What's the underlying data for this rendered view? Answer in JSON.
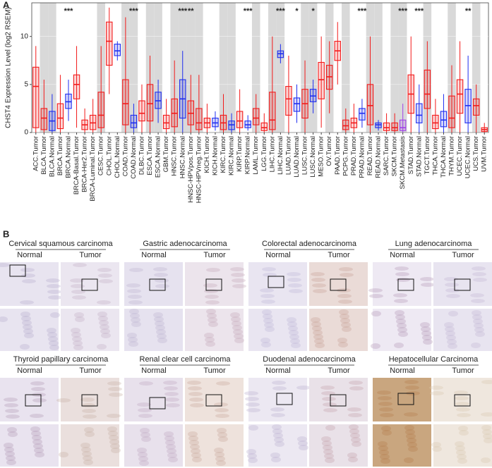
{
  "chart_data": {
    "type": "box",
    "panel_label": "A",
    "y_label": "CHST4 Expression Level (log2 RSEM)",
    "categories": [
      "ACC.Tumor",
      "BLCA.Tumor",
      "BLCA.Normal",
      "BRCA.Tumor",
      "BRCA.Normal",
      "BRCA-Basal.Tumor",
      "BRCA-Her2.Tumor",
      "BRCA-Luminal.Tumor",
      "CESC.Tumor",
      "CHOL.Tumor",
      "CHOL.Normal",
      "COAD.Tumor",
      "COAD.Normal",
      "DLBC.Tumor",
      "ESCA.Tumor",
      "ESCA.Normal",
      "GBM.Tumor",
      "HNSC.Tumor",
      "HNSC.Normal",
      "HNSC-HPVpos.Tumor",
      "HNSC-HPVneg.Tumor",
      "KICH.Tumor",
      "KICH.Normal",
      "KIRC.Tumor",
      "KIRC.Normal",
      "KIRP.Tumor",
      "KIRP.Normal",
      "LAML.Tumor",
      "LGG.Tumor",
      "LIHC.Tumor",
      "LIHC.Normal",
      "LUAD.Tumor",
      "LUAD.Normal",
      "LUSC.Tumor",
      "LUSC.Normal",
      "MESO.Tumor",
      "OV.Tumor",
      "PAAD.Tumor",
      "PCPG.Tumor",
      "PRAD.Tumor",
      "PRAD.Normal",
      "READ.Tumor",
      "READ.Normal",
      "SARC.Tumor",
      "SKCM.Tumor",
      "SKCM.Metastasis",
      "STAD.Tumor",
      "STAD.Normal",
      "TGCT.Tumor",
      "THCA.Tumor",
      "THCA.Normal",
      "THYM.Tumor",
      "UCEC.Tumor",
      "UCEC.Normal",
      "UCS.Tumor",
      "UVM.Tumor"
    ],
    "whisker_low": [
      0,
      0,
      0,
      0,
      1.2,
      0.5,
      0,
      0,
      0,
      4,
      7.5,
      0,
      0,
      0,
      0,
      1,
      0,
      0,
      0,
      0,
      0,
      0,
      0.2,
      0,
      0,
      0,
      0.2,
      0,
      0,
      0,
      7.2,
      0,
      1,
      0,
      2,
      0.5,
      2,
      5,
      0,
      0,
      0.5,
      0,
      0.2,
      0,
      0,
      0,
      0,
      0,
      0,
      0,
      0,
      0,
      0,
      0,
      0,
      0
    ],
    "q1": [
      0.5,
      0.3,
      0.2,
      0.4,
      2.5,
      3.5,
      0.3,
      0.3,
      0.5,
      7,
      8,
      0.8,
      0.5,
      1.2,
      1.2,
      2.5,
      0.4,
      0.6,
      1.5,
      0.8,
      0.3,
      0.5,
      0.6,
      0.3,
      0.3,
      0.5,
      0.5,
      0.8,
      0.2,
      0.3,
      7.8,
      1.8,
      2.2,
      1.5,
      3.2,
      3.5,
      4.5,
      7.5,
      0.3,
      0.5,
      1.3,
      0.8,
      0.5,
      0.2,
      0.2,
      0.2,
      2,
      1,
      2.5,
      0.4,
      0.6,
      0.5,
      2,
      1,
      1.8,
      0.1
    ],
    "median": [
      4.8,
      1.5,
      1.2,
      1.5,
      3.2,
      5,
      0.8,
      1,
      1.8,
      9.5,
      8.5,
      3,
      1,
      2,
      3,
      3.3,
      1,
      2,
      3.5,
      2,
      1,
      1,
      1,
      1,
      0.8,
      1.2,
      0.8,
      1.5,
      0.5,
      1.3,
      8.2,
      3.5,
      3,
      3,
      3.8,
      5.5,
      5.8,
      8.5,
      0.7,
      1,
      2,
      2.8,
      0.8,
      0.5,
      0.5,
      0.5,
      4,
      1.8,
      4,
      1,
      1.3,
      1.5,
      4,
      2.8,
      2.8,
      0.3
    ],
    "q3": [
      6.8,
      2.5,
      2.2,
      3,
      4,
      6,
      1.3,
      1.8,
      4.2,
      11.5,
      9.2,
      5.5,
      1.8,
      3.3,
      5,
      4.2,
      1.8,
      3.5,
      5.5,
      3.3,
      2.5,
      1.5,
      1.5,
      1.8,
      1.2,
      2.2,
      1.2,
      2.5,
      1,
      4.2,
      8.5,
      4.8,
      3.6,
      4.5,
      4.5,
      7.3,
      7,
      9.5,
      1.3,
      1.5,
      2.5,
      5,
      1,
      1,
      1,
      1.3,
      6,
      3,
      6.5,
      1.8,
      2.2,
      3.8,
      5.5,
      4.5,
      3.5,
      0.5
    ],
    "whisker_high": [
      9,
      5.5,
      4,
      6,
      5.5,
      9,
      2.5,
      3.5,
      9,
      13,
      9.5,
      12,
      3,
      5,
      8,
      5.5,
      3.5,
      7.5,
      8.5,
      6,
      6,
      3,
      2.2,
      4,
      2,
      4.5,
      1.8,
      4,
      2,
      10,
      9.2,
      8,
      5,
      7.5,
      5.5,
      10,
      9.5,
      11.5,
      2.5,
      3,
      3.5,
      10,
      1.3,
      2,
      2,
      3,
      10,
      5,
      9.5,
      3.5,
      4,
      7,
      9.5,
      8,
      5,
      1
    ],
    "colors": [
      "#f21b1b",
      "#f21b1b",
      "#1f2ef0",
      "#f21b1b",
      "#1f2ef0",
      "#f21b1b",
      "#f21b1b",
      "#f21b1b",
      "#f21b1b",
      "#f21b1b",
      "#1f2ef0",
      "#f21b1b",
      "#1f2ef0",
      "#f21b1b",
      "#f21b1b",
      "#1f2ef0",
      "#f21b1b",
      "#f21b1b",
      "#1f2ef0",
      "#f21b1b",
      "#f21b1b",
      "#f21b1b",
      "#1f2ef0",
      "#f21b1b",
      "#1f2ef0",
      "#f21b1b",
      "#1f2ef0",
      "#f21b1b",
      "#f21b1b",
      "#f21b1b",
      "#1f2ef0",
      "#f21b1b",
      "#1f2ef0",
      "#f21b1b",
      "#1f2ef0",
      "#f21b1b",
      "#f21b1b",
      "#f21b1b",
      "#f21b1b",
      "#f21b1b",
      "#1f2ef0",
      "#f21b1b",
      "#1f2ef0",
      "#f21b1b",
      "#f21b1b",
      "#a040e8",
      "#f21b1b",
      "#1f2ef0",
      "#f21b1b",
      "#f21b1b",
      "#1f2ef0",
      "#f21b1b",
      "#f21b1b",
      "#1f2ef0",
      "#f21b1b",
      "#f21b1b"
    ],
    "ylim": [
      0,
      13.5
    ],
    "yticks": [
      0,
      5,
      10
    ],
    "shaded_background": true,
    "annotations": [
      {
        "text": "***",
        "category": "BRCA.Normal"
      },
      {
        "text": "***",
        "category": "COAD.Normal"
      },
      {
        "text": "***",
        "category": "HNSC.Normal"
      },
      {
        "text": "**",
        "category": "HNSC-HPVpos.Tumor"
      },
      {
        "text": "***",
        "category": "KIRP.Normal"
      },
      {
        "text": "***",
        "category": "LIHC.Normal"
      },
      {
        "text": "*",
        "category": "LUAD.Normal"
      },
      {
        "text": "*",
        "category": "LUSC.Normal"
      },
      {
        "text": "***",
        "category": "PRAD.Normal"
      },
      {
        "text": "***",
        "category": "SKCM.Metastasis"
      },
      {
        "text": "***",
        "category": "STAD.Normal"
      },
      {
        "text": "**",
        "category": "UCEC.Normal"
      }
    ]
  },
  "panel_b": {
    "label": "B",
    "tissues": [
      {
        "title": "Cervical squamous carcinoma",
        "normal": "Normal",
        "tumor": "Tumor"
      },
      {
        "title": "Gastric adenocarcinoma",
        "normal": "Normal",
        "tumor": "Tumor"
      },
      {
        "title": "Colorectal adenocarcinoma",
        "normal": "Normal",
        "tumor": "Tumor"
      },
      {
        "title": "Lung adenocarcinoma",
        "normal": "Normal",
        "tumor": "Tumor"
      },
      {
        "title": "Thyroid papillary carcinoma",
        "normal": "Normal",
        "tumor": "Tumor"
      },
      {
        "title": "Renal clear cell carcinoma",
        "normal": "Normal",
        "tumor": "Tumor"
      },
      {
        "title": "Duodenal adenocarcinoma",
        "normal": "Normal",
        "tumor": "Tumor"
      },
      {
        "title": "Hepatocellular Carcinoma",
        "normal": "Normal",
        "tumor": "Tumor"
      }
    ]
  }
}
